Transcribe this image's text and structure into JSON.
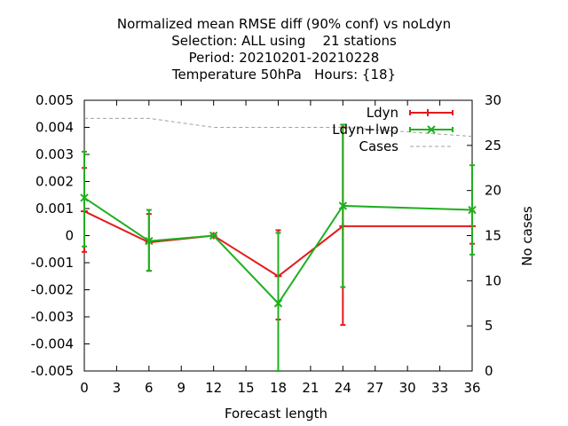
{
  "chart_data": {
    "type": "line",
    "title_lines": [
      "Normalized mean RMSE diff (90% conf) vs noLdyn",
      "Selection: ALL using    21 stations",
      "Period: 20210201-20210228",
      "Temperature 50hPa   Hours: {18}"
    ],
    "xlabel": "Forecast length",
    "ylabel": "",
    "y2label": "No cases",
    "xlim": [
      0,
      36
    ],
    "ylim": [
      -0.005,
      0.005
    ],
    "y2lim": [
      0,
      30
    ],
    "xticks": [
      "0",
      "3",
      "6",
      "9",
      "12",
      "15",
      "18",
      "21",
      "24",
      "27",
      "30",
      "33",
      "36"
    ],
    "yticks": [
      "0.005",
      "0.004",
      "0.003",
      "0.002",
      "0.001",
      "0",
      "-0.001",
      "-0.002",
      "-0.003",
      "-0.004",
      "-0.005"
    ],
    "y2ticks": [
      "30",
      "25",
      "20",
      "15",
      "10",
      "5",
      "0"
    ],
    "legend_position": "top-right",
    "grid": false,
    "series": [
      {
        "name": "Ldyn",
        "color": "#e41a1c",
        "axis": "y1",
        "marker": "plus",
        "x": [
          0,
          6,
          12,
          18,
          24,
          36
        ],
        "y": [
          0.0009,
          -0.00025,
          0.0,
          -0.0015,
          0.00035,
          0.00035
        ],
        "err_low": [
          -0.0006,
          -0.0013,
          -3e-05,
          -0.0031,
          -0.0033,
          -0.0003
        ],
        "err_high": [
          0.0025,
          0.0008,
          3e-05,
          0.0002,
          0.004,
          0.0009
        ]
      },
      {
        "name": "Ldyn+lwp",
        "color": "#1fb01f",
        "axis": "y1",
        "marker": "cross",
        "x": [
          0,
          6,
          12,
          18,
          24,
          36
        ],
        "y": [
          0.0014,
          -0.0002,
          0.0,
          -0.0025,
          0.0011,
          0.00095
        ],
        "err_low": [
          -0.0004,
          -0.0013,
          -3e-05,
          -0.005,
          -0.0019,
          -0.0007
        ],
        "err_high": [
          0.0031,
          0.00095,
          3e-05,
          0.0001,
          0.0041,
          0.0026
        ]
      },
      {
        "name": "Cases",
        "color": "#a0a0a0",
        "axis": "y2",
        "dashed": true,
        "x": [
          0,
          6,
          12,
          18,
          24,
          36
        ],
        "y": [
          28,
          28,
          27,
          27,
          27,
          26
        ]
      }
    ]
  }
}
